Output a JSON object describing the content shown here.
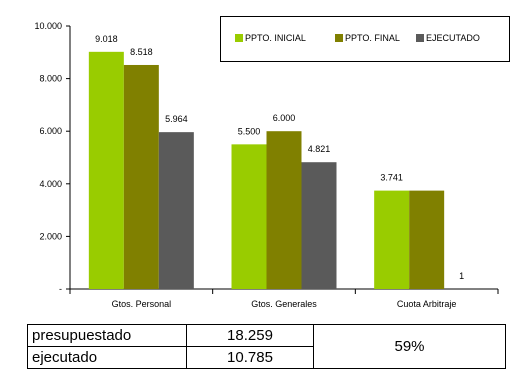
{
  "chart_data": {
    "type": "bar",
    "categories": [
      "Gtos. Personal",
      "Gtos. Generales",
      "Cuota Arbitraje"
    ],
    "series": [
      {
        "name": "PPTO. INICIAL",
        "color": "#99cc00",
        "values": [
          9018,
          5500,
          3741
        ],
        "labels": [
          "9.018",
          "5.500",
          "3.741"
        ]
      },
      {
        "name": "PPTO. FINAL",
        "color": "#808000",
        "values": [
          8518,
          6000,
          3741
        ],
        "labels": [
          "8.518",
          "6.000",
          ""
        ]
      },
      {
        "name": "EJECUTADO",
        "color": "#5a5a5a",
        "values": [
          5964,
          4821,
          1
        ],
        "labels": [
          "5.964",
          "4.821",
          "1"
        ]
      }
    ],
    "yticks": [
      {
        "value": 0,
        "label": "-"
      },
      {
        "value": 2000,
        "label": "2.000"
      },
      {
        "value": 4000,
        "label": "4.000"
      },
      {
        "value": 6000,
        "label": "6.000"
      },
      {
        "value": 8000,
        "label": "8.000"
      },
      {
        "value": 10000,
        "label": "10.000"
      }
    ],
    "ylim": [
      0,
      10000
    ],
    "grid": false,
    "legend_position": "top-right"
  },
  "summary": {
    "budget_label": "presupuestado",
    "budget_value": "18.259",
    "executed_label": "ejecutado",
    "executed_value": "10.785",
    "percent": "59%"
  }
}
